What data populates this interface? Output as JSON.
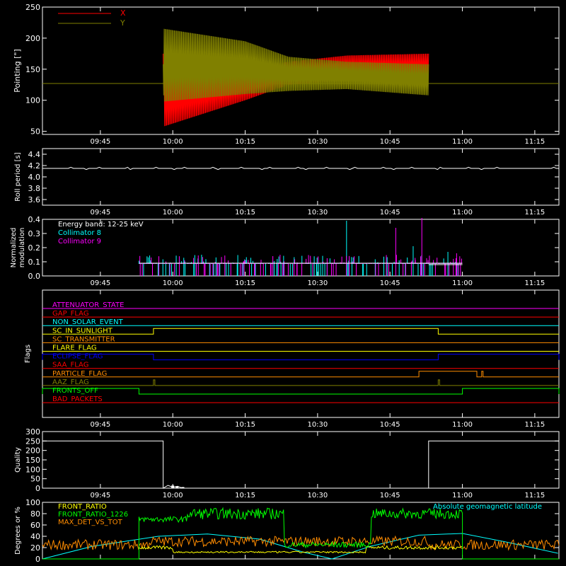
{
  "chart_data": [
    {
      "type": "line",
      "id": "pointing",
      "title": "",
      "xlabel": "",
      "ylabel": "Pointing [\"]",
      "xlim": [
        "09:33",
        "11:20"
      ],
      "ylim": [
        45,
        250
      ],
      "xticks": [
        "09:45",
        "10:00",
        "10:15",
        "10:30",
        "10:45",
        "11:00",
        "11:15"
      ],
      "yticks": [
        50,
        100,
        150,
        200,
        250
      ],
      "legend_position": "top-left",
      "series": [
        {
          "name": "X",
          "color": "#ff0000",
          "baseline": 127,
          "active_start": "09:58",
          "active_end": "10:53",
          "envelope_upper": [
            [
              9.97,
              140
            ],
            [
              10.25,
              150
            ],
            [
              10.4,
              162
            ],
            [
              10.6,
              172
            ],
            [
              10.88,
              175
            ]
          ],
          "envelope_lower": [
            [
              9.97,
              58
            ],
            [
              10.25,
              100
            ],
            [
              10.4,
              125
            ],
            [
              10.6,
              132
            ],
            [
              10.88,
              133
            ]
          ]
        },
        {
          "name": "Y",
          "color": "#808000",
          "baseline": 127,
          "active_start": "09:58",
          "active_end": "10:53",
          "envelope_upper": [
            [
              9.97,
              215
            ],
            [
              10.25,
              195
            ],
            [
              10.4,
              170
            ],
            [
              10.6,
              162
            ],
            [
              10.88,
              158
            ]
          ],
          "envelope_lower": [
            [
              9.97,
              98
            ],
            [
              10.25,
              110
            ],
            [
              10.4,
              115
            ],
            [
              10.6,
              118
            ],
            [
              10.88,
              108
            ]
          ]
        }
      ]
    },
    {
      "type": "line",
      "id": "roll",
      "ylabel": "Roll period [s]",
      "ylim": [
        3.5,
        4.5
      ],
      "yticks": [
        3.6,
        3.8,
        4.0,
        4.2,
        4.4
      ],
      "xticks": [
        "09:45",
        "10:00",
        "10:15",
        "10:30",
        "10:45",
        "11:00",
        "11:15"
      ],
      "series": [
        {
          "name": "",
          "color": "#ffffff",
          "values_constant": 4.15,
          "span": [
            "09:33",
            "11:20"
          ]
        }
      ]
    },
    {
      "type": "bar",
      "id": "modulation",
      "ylabel_lines": [
        "Normalized",
        "modulation"
      ],
      "ylim": [
        0.0,
        0.4
      ],
      "yticks": [
        0.0,
        0.1,
        0.2,
        0.3,
        0.4
      ],
      "xticks": [
        "09:45",
        "10:00",
        "10:15",
        "10:30",
        "10:45",
        "11:00",
        "11:15"
      ],
      "annotations": [
        "Energy band: 12-25 keV"
      ],
      "series": [
        {
          "name": "Collimator 8",
          "color": "#00ffff",
          "baseline": 0.09,
          "span": [
            "09:53",
            "11:00"
          ],
          "spikes": [
            [
              10.6,
              0.39
            ],
            [
              10.83,
              0.21
            ],
            [
              10.95,
              0.17
            ]
          ]
        },
        {
          "name": "Collimator 9",
          "color": "#ff00ff",
          "baseline": 0.09,
          "span": [
            "09:53",
            "11:00"
          ],
          "spikes": [
            [
              10.77,
              0.34
            ],
            [
              10.86,
              0.41
            ],
            [
              10.98,
              0.16
            ]
          ]
        }
      ]
    },
    {
      "type": "line",
      "id": "flags",
      "ylabel": "Flags",
      "xticks": [
        "09:45",
        "10:00",
        "10:15",
        "10:30",
        "10:45",
        "11:00",
        "11:15"
      ],
      "series": [
        {
          "name": "ATTENUATOR_STATE",
          "color": "#ff00ff",
          "steps": []
        },
        {
          "name": "GAP_FLAG",
          "color": "#ff0000",
          "steps": []
        },
        {
          "name": "NON_SOLAR_EVENT",
          "color": "#00ffff",
          "steps": []
        },
        {
          "name": "SC_IN_SUNLIGHT",
          "color": "#ffff00",
          "steps": [
            [
              "09:56",
              "10:55"
            ]
          ]
        },
        {
          "name": "SC_TRANSMITTER",
          "color": "#ff8c00",
          "steps": []
        },
        {
          "name": "FLARE_FLAG",
          "color": "#ffff00",
          "steps": []
        },
        {
          "name": "ECLIPSE_FLAG",
          "color": "#0000ff",
          "steps": [
            [
              "09:33",
              "09:56"
            ],
            [
              "10:55",
              "11:20"
            ]
          ]
        },
        {
          "name": "SAA_FLAG",
          "color": "#ff0000",
          "steps": []
        },
        {
          "name": "PARTICLE_FLAG",
          "color": "#ff8c00",
          "steps": [
            [
              "10:51",
              "11:03"
            ],
            [
              "11:04",
              "11:04"
            ]
          ]
        },
        {
          "name": "AAZ_FLAG",
          "color": "#808000",
          "steps": [
            [
              "09:56",
              "09:56"
            ],
            [
              "10:55",
              "10:55"
            ]
          ]
        },
        {
          "name": "FRONTS_OFF",
          "color": "#00ff00",
          "steps": [
            [
              "09:33",
              "09:53"
            ],
            [
              "11:00",
              "11:20"
            ]
          ]
        },
        {
          "name": "BAD_PACKETS",
          "color": "#ff0000",
          "steps": []
        }
      ]
    },
    {
      "type": "line",
      "id": "quality",
      "ylabel": "Quality",
      "ylim": [
        0,
        300
      ],
      "yticks": [
        0,
        50,
        100,
        150,
        200,
        250,
        300
      ],
      "xticks": [
        "09:45",
        "10:00",
        "10:15",
        "10:30",
        "10:45",
        "11:00",
        "11:15"
      ],
      "series": [
        {
          "name": "",
          "color": "#ffffff",
          "steps": [
            [
              "09:33",
              250
            ],
            [
              "09:58",
              250
            ],
            [
              "09:58",
              0
            ],
            [
              "09:59",
              15
            ],
            [
              "10:00",
              5
            ],
            [
              "10:01",
              10
            ],
            [
              "10:02",
              0
            ],
            [
              "10:53",
              0
            ],
            [
              "10:53",
              250
            ],
            [
              "11:20",
              250
            ]
          ]
        }
      ]
    },
    {
      "type": "line",
      "id": "ratios",
      "ylabel": "Degrees or %",
      "ylim": [
        0,
        100
      ],
      "yticks": [
        0,
        20,
        40,
        60,
        80,
        100
      ],
      "xticks": [
        "09:45",
        "10:00",
        "10:15",
        "10:30",
        "10:45",
        "11:00",
        "11:15"
      ],
      "series": [
        {
          "name": "FRONT_RATIO",
          "color": "#ffff00",
          "typical": 20
        },
        {
          "name": "FRONT_RATIO_1226",
          "color": "#00ff00",
          "typical": 80
        },
        {
          "name": "MAX_DET_VS_TOT",
          "color": "#ff8c00",
          "typical": 25
        },
        {
          "name": "Absolute geomagnetic latitude",
          "color": "#00ffff",
          "points": [
            [
              9.55,
              0
            ],
            [
              9.72,
              22
            ],
            [
              9.95,
              40
            ],
            [
              10.12,
              44
            ],
            [
              10.3,
              35
            ],
            [
              10.45,
              12
            ],
            [
              10.55,
              0
            ],
            [
              10.68,
              22
            ],
            [
              10.85,
              42
            ],
            [
              11.0,
              45
            ],
            [
              11.15,
              30
            ],
            [
              11.33,
              10
            ]
          ]
        }
      ]
    }
  ]
}
